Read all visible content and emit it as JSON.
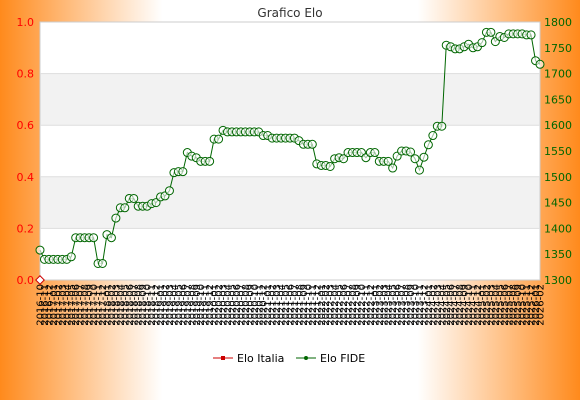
{
  "chart_data": {
    "type": "line",
    "title": "Grafico Elo",
    "y_left": {
      "ticks": [
        "0.0",
        "0.2",
        "0.4",
        "0.6",
        "0.8",
        "1.0"
      ],
      "ylim": [
        0,
        1
      ],
      "color": "#ff0000"
    },
    "y_right": {
      "ticks": [
        "1300",
        "1350",
        "1400",
        "1450",
        "1500",
        "1550",
        "1600",
        "1650",
        "1700",
        "1750",
        "1800"
      ],
      "ylim": [
        1300,
        1800
      ],
      "color": "#006600"
    },
    "x_labels": [
      "2016-10",
      "2016-11",
      "2016-12",
      "2017-01",
      "2017-02",
      "2017-03",
      "2017-04",
      "2017-05",
      "2017-06",
      "2017-07",
      "2017-08",
      "2017-09",
      "2017-10",
      "2017-11",
      "2017-12",
      "2018-01",
      "2018-02",
      "2018-03",
      "2018-04",
      "2018-05",
      "2018-06",
      "2018-07",
      "2018-08",
      "2018-09",
      "2018-10",
      "2018-11",
      "2018-12",
      "2019-01",
      "2019-02",
      "2019-03",
      "2019-04",
      "2019-05",
      "2019-06",
      "2019-07",
      "2019-08",
      "2019-09",
      "2019-10",
      "2019-11",
      "2019-12",
      "2020-01",
      "2020-02",
      "2020-03",
      "2020-04",
      "2020-05",
      "2020-06",
      "2020-07",
      "2020-08",
      "2020-09",
      "2020-10",
      "2020-11",
      "2020-12",
      "2021-01",
      "2021-02",
      "2021-03",
      "2021-04",
      "2021-05",
      "2021-06",
      "2021-07",
      "2021-08",
      "2021-09",
      "2021-10",
      "2021-11",
      "2021-12",
      "2022-01",
      "2022-02",
      "2022-03",
      "2022-04",
      "2022-05",
      "2022-06",
      "2022-07",
      "2022-08",
      "2022-09",
      "2022-10",
      "2022-11",
      "2022-12",
      "2023-01",
      "2023-02",
      "2023-03",
      "2023-04",
      "2023-05",
      "2023-06",
      "2023-07",
      "2023-08",
      "2023-09",
      "2023-10",
      "2023-11",
      "2023-12",
      "2024-01",
      "2024-02",
      "2024-03",
      "2024-04",
      "2024-05",
      "2024-06",
      "2024-07",
      "2024-08",
      "2024-09",
      "2024-10",
      "2024-11",
      "2024-12",
      "2025-01",
      "2025-02",
      "2025-03",
      "2025-04",
      "2025-05",
      "2025-06",
      "2025-07",
      "2025-08",
      "2025-09",
      "2025-10",
      "2025-11",
      "2025-12",
      "2026-01",
      "2026-02"
    ],
    "series": [
      {
        "name": "Elo Italia",
        "axis": "left",
        "color": "#cc0000",
        "values": [
          0
        ]
      },
      {
        "name": "Elo FIDE",
        "axis": "right",
        "color": "#006600",
        "values": [
          1358,
          1340,
          1340,
          1340,
          1340,
          1340,
          1340,
          1345,
          1382,
          1382,
          1382,
          1382,
          1382,
          1332,
          1332,
          1388,
          1382,
          1420,
          1440,
          1440,
          1458,
          1458,
          1443,
          1443,
          1443,
          1448,
          1450,
          1461,
          1463,
          1473,
          1508,
          1510,
          1510,
          1547,
          1540,
          1537,
          1530,
          1530,
          1530,
          1573,
          1573,
          1590,
          1587,
          1587,
          1587,
          1587,
          1587,
          1587,
          1587,
          1587,
          1580,
          1580,
          1575,
          1575,
          1575,
          1575,
          1575,
          1575,
          1570,
          1563,
          1563,
          1563,
          1525,
          1522,
          1522,
          1520,
          1535,
          1537,
          1535,
          1547,
          1547,
          1547,
          1547,
          1537,
          1547,
          1547,
          1530,
          1530,
          1530,
          1517,
          1540,
          1550,
          1550,
          1548,
          1535,
          1513,
          1538,
          1562,
          1580,
          1598,
          1598,
          1755,
          1752,
          1748,
          1748,
          1752,
          1757,
          1750,
          1752,
          1760,
          1780,
          1780,
          1762,
          1772,
          1770,
          1777,
          1777,
          1777,
          1777,
          1775,
          1775,
          1725,
          1718
        ]
      }
    ],
    "legend_position": "bottom",
    "grid": true
  }
}
